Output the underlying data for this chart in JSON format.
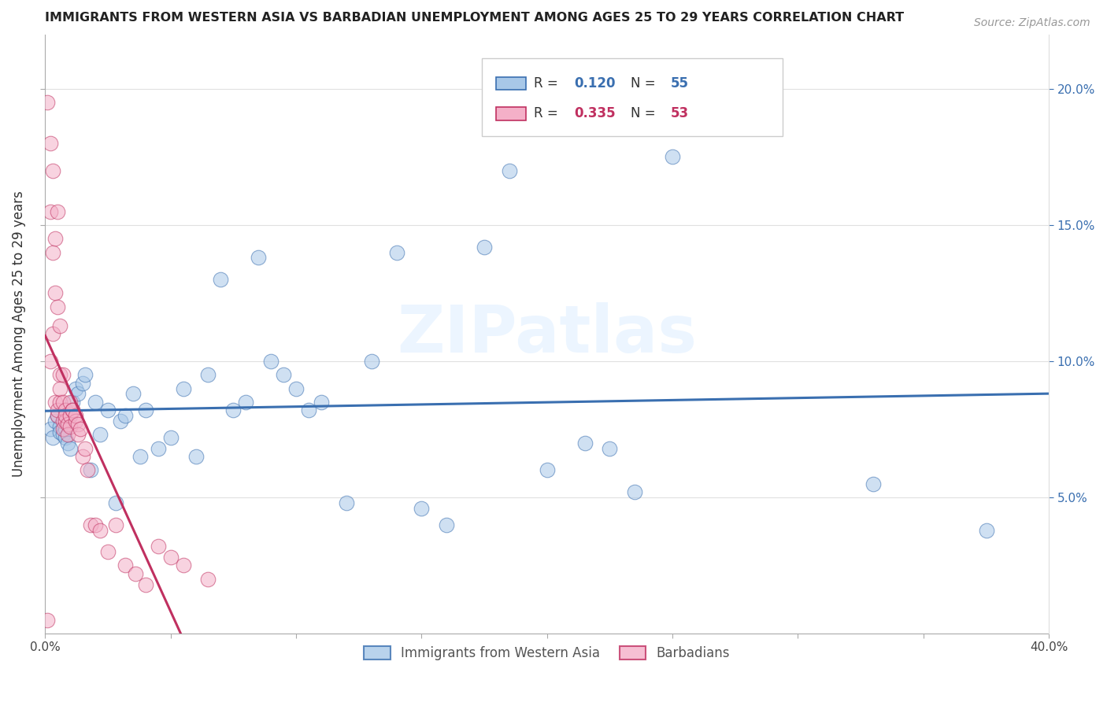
{
  "title": "IMMIGRANTS FROM WESTERN ASIA VS BARBADIAN UNEMPLOYMENT AMONG AGES 25 TO 29 YEARS CORRELATION CHART",
  "source": "Source: ZipAtlas.com",
  "ylabel": "Unemployment Among Ages 25 to 29 years",
  "xlim": [
    0.0,
    0.4
  ],
  "ylim": [
    0.0,
    0.22
  ],
  "legend_labels": [
    "Immigrants from Western Asia",
    "Barbadians"
  ],
  "blue_R": "0.120",
  "blue_N": "55",
  "pink_R": "0.335",
  "pink_N": "53",
  "blue_color": "#a8c8e8",
  "pink_color": "#f4b0c8",
  "trendline_blue": "#3a6fb0",
  "trendline_pink": "#c03060",
  "watermark": "ZIPatlas",
  "blue_x": [
    0.002,
    0.003,
    0.004,
    0.005,
    0.006,
    0.006,
    0.007,
    0.008,
    0.008,
    0.009,
    0.01,
    0.01,
    0.011,
    0.012,
    0.013,
    0.015,
    0.016,
    0.018,
    0.02,
    0.022,
    0.025,
    0.028,
    0.03,
    0.032,
    0.035,
    0.038,
    0.04,
    0.045,
    0.05,
    0.055,
    0.06,
    0.065,
    0.07,
    0.075,
    0.08,
    0.085,
    0.09,
    0.095,
    0.1,
    0.105,
    0.11,
    0.12,
    0.13,
    0.14,
    0.15,
    0.16,
    0.175,
    0.185,
    0.2,
    0.215,
    0.225,
    0.235,
    0.25,
    0.33,
    0.375
  ],
  "blue_y": [
    0.075,
    0.072,
    0.078,
    0.08,
    0.076,
    0.074,
    0.073,
    0.075,
    0.072,
    0.07,
    0.068,
    0.08,
    0.085,
    0.09,
    0.088,
    0.092,
    0.095,
    0.06,
    0.085,
    0.073,
    0.082,
    0.048,
    0.078,
    0.08,
    0.088,
    0.065,
    0.082,
    0.068,
    0.072,
    0.09,
    0.065,
    0.095,
    0.13,
    0.082,
    0.085,
    0.138,
    0.1,
    0.095,
    0.09,
    0.082,
    0.085,
    0.048,
    0.1,
    0.14,
    0.046,
    0.04,
    0.142,
    0.17,
    0.06,
    0.07,
    0.068,
    0.052,
    0.175,
    0.055,
    0.038
  ],
  "pink_x": [
    0.001,
    0.001,
    0.002,
    0.002,
    0.002,
    0.003,
    0.003,
    0.003,
    0.004,
    0.004,
    0.004,
    0.005,
    0.005,
    0.005,
    0.005,
    0.006,
    0.006,
    0.006,
    0.006,
    0.007,
    0.007,
    0.007,
    0.007,
    0.008,
    0.008,
    0.008,
    0.009,
    0.009,
    0.01,
    0.01,
    0.01,
    0.011,
    0.011,
    0.012,
    0.012,
    0.013,
    0.013,
    0.014,
    0.015,
    0.016,
    0.017,
    0.018,
    0.02,
    0.022,
    0.025,
    0.028,
    0.032,
    0.036,
    0.04,
    0.045,
    0.05,
    0.055,
    0.065
  ],
  "pink_y": [
    0.005,
    0.195,
    0.155,
    0.18,
    0.1,
    0.14,
    0.11,
    0.17,
    0.125,
    0.145,
    0.085,
    0.08,
    0.082,
    0.155,
    0.12,
    0.095,
    0.085,
    0.113,
    0.09,
    0.095,
    0.085,
    0.078,
    0.075,
    0.082,
    0.078,
    0.08,
    0.077,
    0.073,
    0.08,
    0.076,
    0.085,
    0.082,
    0.082,
    0.078,
    0.08,
    0.077,
    0.073,
    0.075,
    0.065,
    0.068,
    0.06,
    0.04,
    0.04,
    0.038,
    0.03,
    0.04,
    0.025,
    0.022,
    0.018,
    0.032,
    0.028,
    0.025,
    0.02
  ]
}
